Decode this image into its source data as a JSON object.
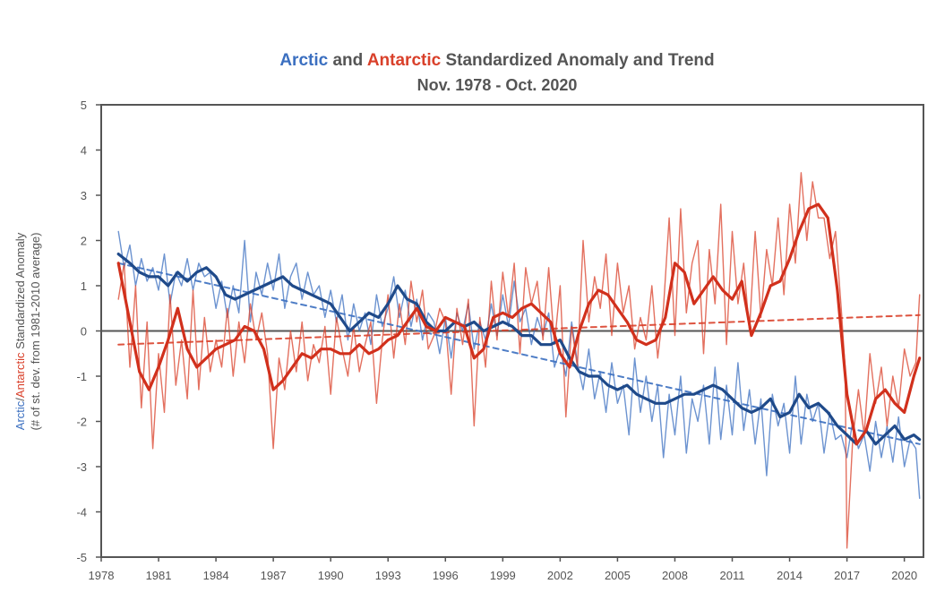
{
  "colors": {
    "arctic": "#3b6fc0",
    "antarctic": "#d9402a",
    "arctic_dark": "#1f4a8a",
    "antarctic_dark": "#d1301c",
    "axis": "#555555",
    "zero": "#555555"
  },
  "chart_data": {
    "type": "line",
    "title_parts": [
      "Arctic",
      " and ",
      "Antarctic",
      " Standardized Anomaly and Trend"
    ],
    "subtitle": "Nov. 1978 - Oct. 2020",
    "ylabel_parts": [
      "Arctic",
      "/",
      "Antarctic",
      " Standardized Anomaly"
    ],
    "ylabel_sub": "(# of st. dev. from 1981-2010 average)",
    "xlim": [
      1978,
      2021
    ],
    "ylim": [
      -5,
      5
    ],
    "xticks": [
      "1978",
      "1981",
      "1984",
      "1987",
      "1990",
      "1993",
      "1996",
      "1999",
      "2002",
      "2005",
      "2008",
      "2011",
      "2014",
      "2017",
      "2020"
    ],
    "yticks": [
      "5",
      "4",
      "3",
      "2",
      "1",
      "0",
      "-1",
      "-2",
      "-3",
      "-4",
      "-5"
    ],
    "series": [
      {
        "name": "Arctic monthly anomaly",
        "style": "thin",
        "x": [
          1978.9,
          1979.2,
          1979.5,
          1979.8,
          1980.1,
          1980.4,
          1980.7,
          1981.0,
          1981.3,
          1981.6,
          1981.9,
          1982.2,
          1982.5,
          1982.8,
          1983.1,
          1983.4,
          1983.7,
          1984.0,
          1984.3,
          1984.6,
          1984.9,
          1985.2,
          1985.5,
          1985.8,
          1986.1,
          1986.4,
          1986.7,
          1987.0,
          1987.3,
          1987.6,
          1987.9,
          1988.2,
          1988.5,
          1988.8,
          1989.1,
          1989.4,
          1989.7,
          1990.0,
          1990.3,
          1990.6,
          1990.9,
          1991.2,
          1991.5,
          1991.8,
          1992.1,
          1992.4,
          1992.7,
          1993.0,
          1993.3,
          1993.6,
          1993.9,
          1994.2,
          1994.5,
          1994.8,
          1995.1,
          1995.4,
          1995.7,
          1996.0,
          1996.3,
          1996.6,
          1996.9,
          1997.2,
          1997.5,
          1997.8,
          1998.1,
          1998.4,
          1998.7,
          1999.0,
          1999.3,
          1999.6,
          1999.9,
          2000.2,
          2000.5,
          2000.8,
          2001.1,
          2001.4,
          2001.7,
          2002.0,
          2002.3,
          2002.6,
          2002.9,
          2003.2,
          2003.5,
          2003.8,
          2004.1,
          2004.4,
          2004.7,
          2005.0,
          2005.3,
          2005.6,
          2005.9,
          2006.2,
          2006.5,
          2006.8,
          2007.1,
          2007.4,
          2007.7,
          2008.0,
          2008.3,
          2008.6,
          2008.9,
          2009.2,
          2009.5,
          2009.8,
          2010.1,
          2010.4,
          2010.7,
          2011.0,
          2011.3,
          2011.6,
          2011.9,
          2012.2,
          2012.5,
          2012.8,
          2013.1,
          2013.4,
          2013.7,
          2014.0,
          2014.3,
          2014.6,
          2014.9,
          2015.2,
          2015.5,
          2015.8,
          2016.1,
          2016.4,
          2016.7,
          2017.0,
          2017.3,
          2017.6,
          2017.9,
          2018.2,
          2018.5,
          2018.8,
          2019.1,
          2019.4,
          2019.7,
          2020.0,
          2020.3,
          2020.6,
          2020.8
        ],
        "values": [
          2.2,
          1.4,
          1.9,
          1.0,
          1.6,
          1.1,
          1.4,
          0.9,
          1.7,
          0.6,
          1.3,
          1.0,
          1.6,
          0.9,
          1.5,
          1.2,
          1.3,
          0.5,
          1.1,
          0.3,
          1.0,
          0.4,
          2.0,
          0.2,
          1.3,
          0.8,
          1.5,
          0.9,
          1.7,
          0.5,
          1.2,
          1.5,
          0.7,
          1.3,
          0.8,
          1.0,
          0.3,
          0.9,
          0.2,
          0.8,
          -0.2,
          0.6,
          0.0,
          0.4,
          -0.3,
          0.8,
          0.1,
          0.5,
          1.2,
          0.3,
          0.9,
          0.1,
          0.7,
          -0.2,
          0.4,
          0.2,
          -0.5,
          0.3,
          -0.6,
          0.4,
          0.0,
          0.6,
          -0.4,
          0.2,
          -0.2,
          0.6,
          -0.1,
          0.8,
          0.1,
          1.1,
          0.2,
          0.5,
          -0.3,
          0.3,
          -0.1,
          0.4,
          -0.8,
          -0.4,
          -1.0,
          0.2,
          -0.7,
          -1.3,
          -0.4,
          -1.5,
          -0.9,
          -1.8,
          -0.7,
          -1.6,
          -1.2,
          -2.3,
          -0.6,
          -1.8,
          -1.0,
          -2.0,
          -1.2,
          -2.8,
          -1.4,
          -2.3,
          -1.0,
          -2.7,
          -1.5,
          -2.0,
          -1.2,
          -2.5,
          -0.8,
          -2.4,
          -1.2,
          -2.3,
          -0.7,
          -2.2,
          -1.3,
          -2.5,
          -1.5,
          -3.2,
          -1.4,
          -2.1,
          -1.6,
          -2.7,
          -1.0,
          -2.5,
          -1.4,
          -2.0,
          -1.6,
          -2.7,
          -1.8,
          -2.4,
          -2.3,
          -2.8,
          -2.0,
          -2.6,
          -2.3,
          -3.1,
          -2.0,
          -2.8,
          -2.1,
          -2.9,
          -1.9,
          -3.0,
          -2.4,
          -2.6,
          -3.7
        ]
      },
      {
        "name": "Arctic 12-month running mean",
        "style": "thick",
        "x": [
          1978.9,
          1979.5,
          1980.0,
          1980.5,
          1981.0,
          1981.5,
          1982.0,
          1982.5,
          1983.0,
          1983.5,
          1984.0,
          1984.5,
          1985.0,
          1985.5,
          1986.0,
          1986.5,
          1987.0,
          1987.5,
          1988.0,
          1988.5,
          1989.0,
          1989.5,
          1990.0,
          1990.5,
          1991.0,
          1991.5,
          1992.0,
          1992.5,
          1993.0,
          1993.5,
          1994.0,
          1994.5,
          1995.0,
          1995.5,
          1996.0,
          1996.5,
          1997.0,
          1997.5,
          1998.0,
          1998.5,
          1999.0,
          1999.5,
          2000.0,
          2000.5,
          2001.0,
          2001.5,
          2002.0,
          2002.5,
          2003.0,
          2003.5,
          2004.0,
          2004.5,
          2005.0,
          2005.5,
          2006.0,
          2006.5,
          2007.0,
          2007.5,
          2008.0,
          2008.5,
          2009.0,
          2009.5,
          2010.0,
          2010.5,
          2011.0,
          2011.5,
          2012.0,
          2012.5,
          2013.0,
          2013.5,
          2014.0,
          2014.5,
          2015.0,
          2015.5,
          2016.0,
          2016.5,
          2017.0,
          2017.5,
          2018.0,
          2018.5,
          2019.0,
          2019.5,
          2020.0,
          2020.5,
          2020.8
        ],
        "values": [
          1.7,
          1.5,
          1.3,
          1.2,
          1.2,
          1.0,
          1.3,
          1.1,
          1.3,
          1.4,
          1.2,
          0.8,
          0.7,
          0.8,
          0.9,
          1.0,
          1.1,
          1.2,
          1.0,
          0.9,
          0.8,
          0.7,
          0.6,
          0.3,
          0.0,
          0.2,
          0.4,
          0.3,
          0.6,
          1.0,
          0.7,
          0.6,
          0.2,
          0.0,
          0.0,
          0.2,
          0.1,
          0.2,
          0.0,
          0.1,
          0.2,
          0.1,
          -0.1,
          -0.1,
          -0.3,
          -0.3,
          -0.2,
          -0.6,
          -0.9,
          -1.0,
          -1.0,
          -1.2,
          -1.3,
          -1.2,
          -1.4,
          -1.5,
          -1.6,
          -1.6,
          -1.5,
          -1.4,
          -1.4,
          -1.3,
          -1.2,
          -1.3,
          -1.5,
          -1.7,
          -1.8,
          -1.7,
          -1.5,
          -1.9,
          -1.8,
          -1.4,
          -1.7,
          -1.6,
          -1.8,
          -2.1,
          -2.3,
          -2.5,
          -2.2,
          -2.5,
          -2.3,
          -2.1,
          -2.4,
          -2.3,
          -2.4
        ]
      },
      {
        "name": "Arctic trend",
        "style": "dashed",
        "x": [
          1978.9,
          2020.8
        ],
        "values": [
          1.5,
          -2.5
        ]
      },
      {
        "name": "Antarctic monthly anomaly",
        "style": "thin",
        "x": [
          1978.9,
          1979.2,
          1979.5,
          1979.8,
          1980.1,
          1980.4,
          1980.7,
          1981.0,
          1981.3,
          1981.6,
          1981.9,
          1982.2,
          1982.5,
          1982.8,
          1983.1,
          1983.4,
          1983.7,
          1984.0,
          1984.3,
          1984.6,
          1984.9,
          1985.2,
          1985.5,
          1985.8,
          1986.1,
          1986.4,
          1986.7,
          1987.0,
          1987.3,
          1987.6,
          1987.9,
          1988.2,
          1988.5,
          1988.8,
          1989.1,
          1989.4,
          1989.7,
          1990.0,
          1990.3,
          1990.6,
          1990.9,
          1991.2,
          1991.5,
          1991.8,
          1992.1,
          1992.4,
          1992.7,
          1993.0,
          1993.3,
          1993.6,
          1993.9,
          1994.2,
          1994.5,
          1994.8,
          1995.1,
          1995.4,
          1995.7,
          1996.0,
          1996.3,
          1996.6,
          1996.9,
          1997.2,
          1997.5,
          1997.8,
          1998.1,
          1998.4,
          1998.7,
          1999.0,
          1999.3,
          1999.6,
          1999.9,
          2000.2,
          2000.5,
          2000.8,
          2001.1,
          2001.4,
          2001.7,
          2002.0,
          2002.3,
          2002.6,
          2002.9,
          2003.2,
          2003.5,
          2003.8,
          2004.1,
          2004.4,
          2004.7,
          2005.0,
          2005.3,
          2005.6,
          2005.9,
          2006.2,
          2006.5,
          2006.8,
          2007.1,
          2007.4,
          2007.7,
          2008.0,
          2008.3,
          2008.6,
          2008.9,
          2009.2,
          2009.5,
          2009.8,
          2010.1,
          2010.4,
          2010.7,
          2011.0,
          2011.3,
          2011.6,
          2011.9,
          2012.2,
          2012.5,
          2012.8,
          2013.1,
          2013.4,
          2013.7,
          2014.0,
          2014.3,
          2014.6,
          2014.9,
          2015.2,
          2015.5,
          2015.8,
          2016.1,
          2016.4,
          2016.7,
          2016.9,
          2017.0,
          2017.3,
          2017.6,
          2017.9,
          2018.2,
          2018.5,
          2018.8,
          2019.1,
          2019.4,
          2019.7,
          2020.0,
          2020.3,
          2020.6,
          2020.8
        ],
        "values": [
          0.7,
          1.5,
          -0.8,
          1.0,
          -1.7,
          0.2,
          -2.6,
          -0.5,
          -1.8,
          0.8,
          -1.2,
          -0.2,
          -1.5,
          0.9,
          -1.3,
          0.3,
          -0.9,
          -0.2,
          -0.8,
          0.5,
          -1.0,
          0.2,
          -0.7,
          0.6,
          -0.2,
          0.4,
          -0.5,
          -2.6,
          -0.6,
          -1.3,
          0.0,
          -0.9,
          0.2,
          -1.1,
          -0.3,
          -0.7,
          0.1,
          -1.4,
          0.3,
          -0.4,
          -1.0,
          0.1,
          -0.9,
          -0.3,
          0.2,
          -1.6,
          -0.2,
          0.8,
          -0.6,
          0.6,
          -0.3,
          1.1,
          0.2,
          0.9,
          -0.4,
          -0.1,
          0.5,
          0.2,
          -1.4,
          0.5,
          -0.3,
          0.7,
          -2.1,
          0.3,
          -0.8,
          1.1,
          -0.2,
          1.3,
          0.3,
          1.5,
          -0.5,
          1.4,
          0.6,
          1.1,
          -0.2,
          1.4,
          -0.3,
          1.0,
          -1.9,
          0.1,
          -0.8,
          2.0,
          0.2,
          1.2,
          0.5,
          1.7,
          -0.1,
          1.5,
          0.4,
          1.0,
          -0.4,
          0.3,
          -0.2,
          1.0,
          -0.6,
          0.5,
          2.5,
          -0.1,
          2.7,
          0.4,
          1.5,
          2.0,
          -0.5,
          1.8,
          0.6,
          2.8,
          -0.3,
          2.2,
          0.6,
          1.5,
          0.0,
          2.2,
          0.3,
          1.8,
          1.0,
          2.5,
          0.8,
          2.8,
          1.5,
          3.5,
          2.0,
          3.3,
          2.5,
          2.5,
          1.6,
          2.2,
          0.5,
          -0.8,
          -4.8,
          -2.4,
          -1.3,
          -2.3,
          -0.5,
          -1.6,
          -0.8,
          -2.1,
          -1.0,
          -1.7,
          -0.4,
          -1.0,
          -0.7,
          0.8
        ]
      },
      {
        "name": "Antarctic 12-month running mean",
        "style": "thick",
        "x": [
          1978.9,
          1979.5,
          1980.0,
          1980.5,
          1981.0,
          1981.5,
          1982.0,
          1982.5,
          1983.0,
          1983.5,
          1984.0,
          1984.5,
          1985.0,
          1985.5,
          1986.0,
          1986.5,
          1987.0,
          1987.5,
          1988.0,
          1988.5,
          1989.0,
          1989.5,
          1990.0,
          1990.5,
          1991.0,
          1991.5,
          1992.0,
          1992.5,
          1993.0,
          1993.5,
          1994.0,
          1994.5,
          1995.0,
          1995.5,
          1996.0,
          1996.5,
          1997.0,
          1997.5,
          1998.0,
          1998.5,
          1999.0,
          1999.5,
          2000.0,
          2000.5,
          2001.0,
          2001.5,
          2002.0,
          2002.5,
          2003.0,
          2003.5,
          2004.0,
          2004.5,
          2005.0,
          2005.5,
          2006.0,
          2006.5,
          2007.0,
          2007.5,
          2008.0,
          2008.5,
          2009.0,
          2009.5,
          2010.0,
          2010.5,
          2011.0,
          2011.5,
          2012.0,
          2012.5,
          2013.0,
          2013.5,
          2014.0,
          2014.5,
          2015.0,
          2015.5,
          2016.0,
          2016.5,
          2017.0,
          2017.5,
          2018.0,
          2018.5,
          2019.0,
          2019.5,
          2020.0,
          2020.5,
          2020.8
        ],
        "values": [
          1.5,
          0.2,
          -0.9,
          -1.3,
          -0.8,
          -0.2,
          0.5,
          -0.4,
          -0.8,
          -0.6,
          -0.4,
          -0.3,
          -0.2,
          0.1,
          0.0,
          -0.4,
          -1.3,
          -1.1,
          -0.8,
          -0.5,
          -0.6,
          -0.4,
          -0.4,
          -0.5,
          -0.5,
          -0.3,
          -0.5,
          -0.4,
          -0.2,
          -0.1,
          0.2,
          0.5,
          0.1,
          0.0,
          0.3,
          0.2,
          0.1,
          -0.6,
          -0.4,
          0.3,
          0.4,
          0.3,
          0.5,
          0.6,
          0.4,
          0.2,
          -0.5,
          -0.8,
          0.0,
          0.6,
          0.9,
          0.8,
          0.5,
          0.2,
          -0.2,
          -0.3,
          -0.2,
          0.3,
          1.5,
          1.3,
          0.6,
          0.9,
          1.2,
          0.9,
          0.7,
          1.1,
          -0.1,
          0.4,
          1.0,
          1.1,
          1.6,
          2.2,
          2.7,
          2.8,
          2.5,
          0.9,
          -1.4,
          -2.5,
          -2.2,
          -1.5,
          -1.3,
          -1.6,
          -1.8,
          -1.0,
          -0.6
        ]
      },
      {
        "name": "Antarctic trend",
        "style": "dashed",
        "x": [
          1978.9,
          2020.8
        ],
        "values": [
          -0.3,
          0.35
        ]
      }
    ]
  }
}
